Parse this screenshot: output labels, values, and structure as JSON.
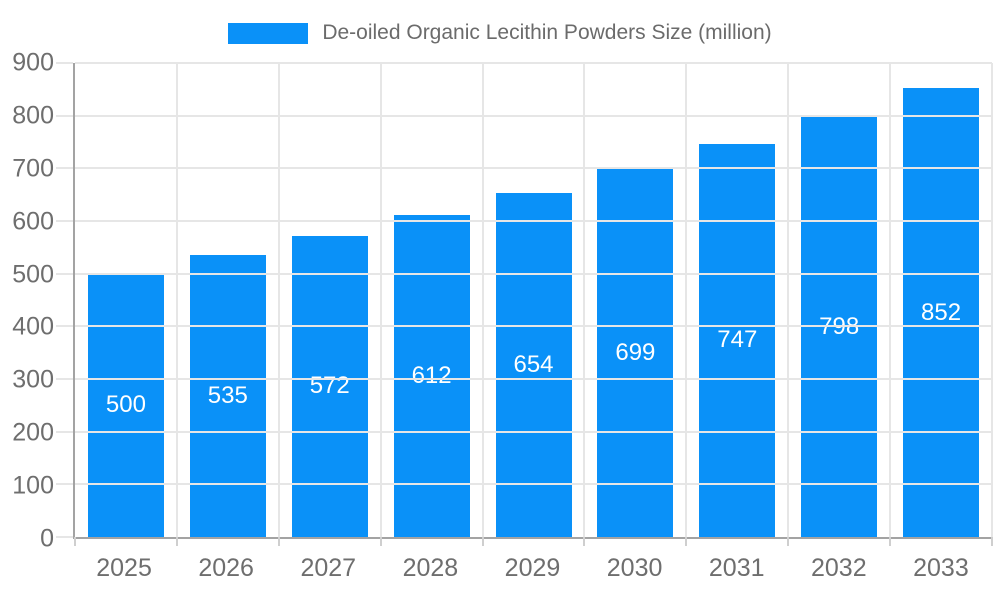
{
  "chart_data": {
    "type": "bar",
    "title": "De-oiled Organic Lecithin Powders Size (million)",
    "categories": [
      "2025",
      "2026",
      "2027",
      "2028",
      "2029",
      "2030",
      "2031",
      "2032",
      "2033"
    ],
    "values": [
      500,
      535,
      572,
      612,
      654,
      699,
      747,
      798,
      852
    ],
    "xlabel": "",
    "ylabel": "",
    "ylim": [
      0,
      900
    ],
    "yticks": [
      0,
      100,
      200,
      300,
      400,
      500,
      600,
      700,
      800,
      900
    ],
    "grid": true,
    "legend_position": "top",
    "legend_entries": [
      "De-oiled Organic Lecithin Powders Size (million)"
    ],
    "bar_value_labels_shown": true
  },
  "legend": {
    "label": "De-oiled Organic Lecithin Powders Size (million)"
  },
  "colors": {
    "bar": "#0A91F8",
    "bar_value_text": "#FFFFFF",
    "grid_line": "#E6E6E6",
    "axis_line": "#A3A3A3",
    "axis_text": "#6E6E6E",
    "legend_text": "#6B6B6B",
    "background": "#FFFFFF"
  }
}
